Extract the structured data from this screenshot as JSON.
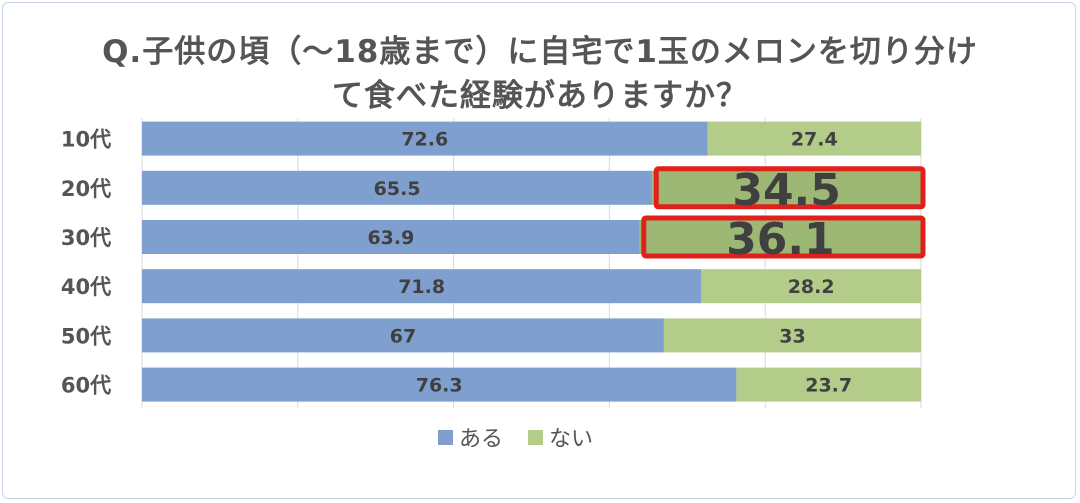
{
  "chart_data": {
    "type": "bar",
    "orientation": "horizontal",
    "stacked": true,
    "percent_stacked": true,
    "title_line1": "Q.子供の頃（～18歳まで）に自宅で1玉のメロンを切り分け",
    "title_line2": "て食べた経験がありますか？",
    "categories": [
      "10代",
      "20代",
      "30代",
      "40代",
      "50代",
      "60代"
    ],
    "series": [
      {
        "name": "ある",
        "values": [
          72.6,
          65.5,
          63.9,
          71.8,
          67,
          76.3
        ],
        "color": "#7f9fcf"
      },
      {
        "name": "ない",
        "values": [
          27.4,
          34.5,
          36.1,
          28.2,
          33,
          23.7
        ],
        "color": "#b3cc8a"
      }
    ],
    "xlim": [
      0,
      100
    ],
    "highlighted": [
      {
        "category": "20代",
        "series": "ない"
      },
      {
        "category": "30代",
        "series": "ない"
      }
    ],
    "highlight_color": "#e0201b",
    "legend_position": "bottom",
    "grid": "vertical"
  }
}
